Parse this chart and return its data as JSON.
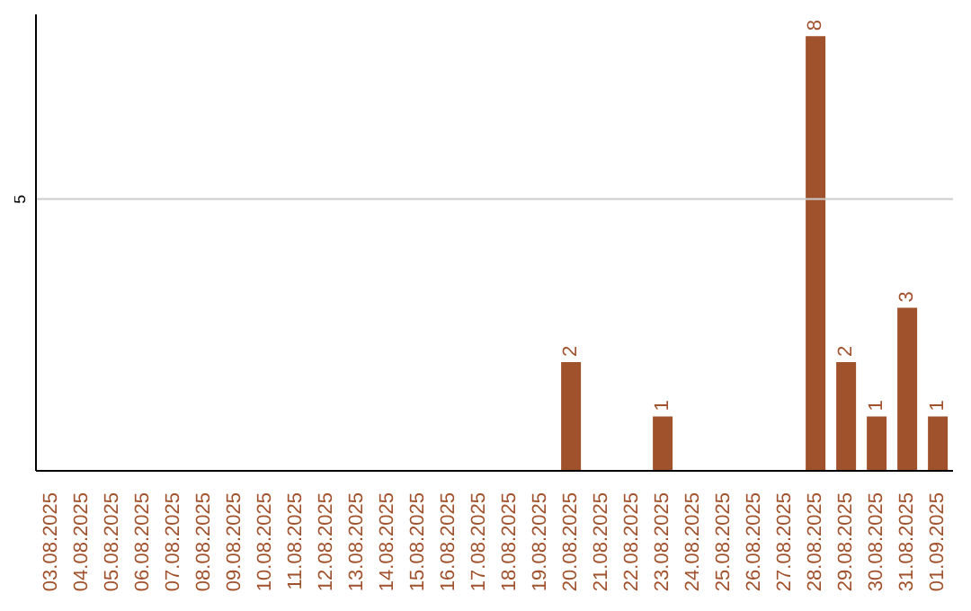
{
  "chart_data": {
    "type": "bar",
    "categories": [
      "03.08.2025",
      "04.08.2025",
      "05.08.2025",
      "06.08.2025",
      "07.08.2025",
      "08.08.2025",
      "09.08.2025",
      "10.08.2025",
      "11.08.2025",
      "12.08.2025",
      "13.08.2025",
      "14.08.2025",
      "15.08.2025",
      "16.08.2025",
      "17.08.2025",
      "18.08.2025",
      "19.08.2025",
      "20.08.2025",
      "21.08.2025",
      "22.08.2025",
      "23.08.2025",
      "24.08.2025",
      "25.08.2025",
      "26.08.2025",
      "27.08.2025",
      "28.08.2025",
      "29.08.2025",
      "30.08.2025",
      "31.08.2025",
      "01.09.2025"
    ],
    "values": [
      null,
      null,
      null,
      null,
      null,
      null,
      null,
      null,
      null,
      null,
      null,
      null,
      null,
      null,
      null,
      null,
      null,
      2,
      null,
      null,
      1,
      null,
      null,
      null,
      null,
      8,
      2,
      1,
      3,
      1
    ],
    "color": "#a0522d",
    "ylim": [
      0,
      8.4
    ],
    "ref_lines": [
      {
        "axis": "y",
        "value": 5,
        "label": "5",
        "color": "#cccccc"
      }
    ],
    "data_labels": true
  }
}
